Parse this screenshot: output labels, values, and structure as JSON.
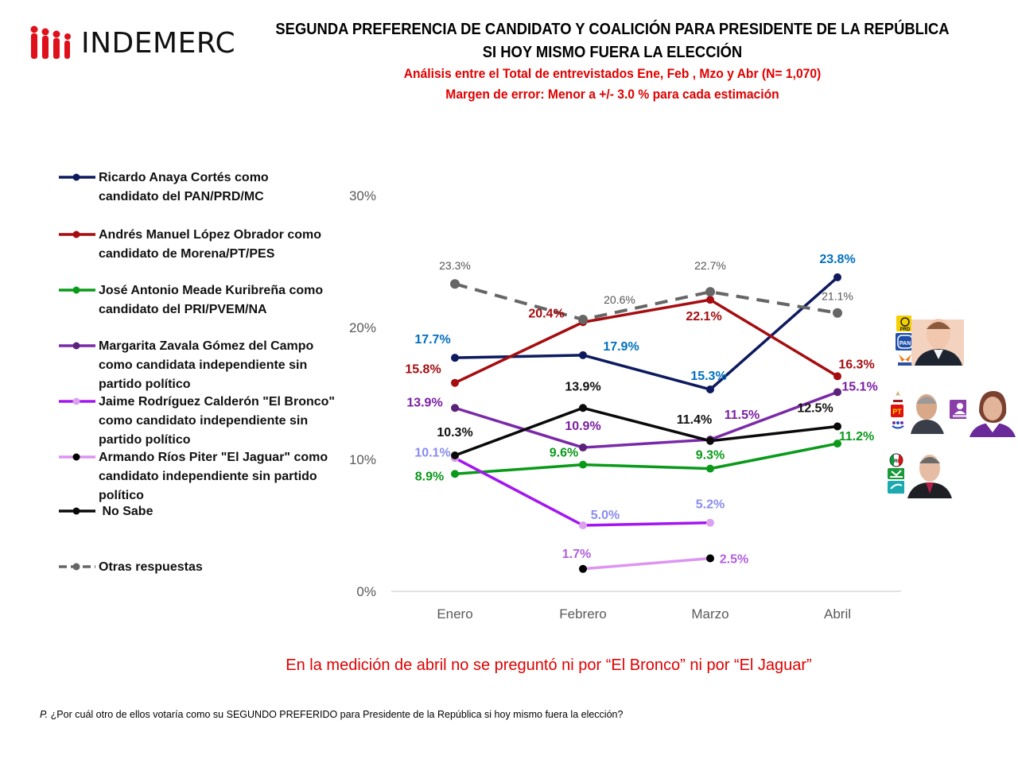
{
  "logo": {
    "text": "INDEMERC",
    "brand_color": "#e0101a"
  },
  "header": {
    "title_line1": "SEGUNDA PREFERENCIA DE CANDIDATO Y COALICIÓN PARA PRESIDENTE DE LA REPÚBLICA",
    "title_line2": "SI HOY MISMO FUERA LA ELECCIÓN",
    "subtitle_line1": "Análisis entre el Total de entrevistados Ene, Feb , Mzo y Abr  (N= 1,070)",
    "subtitle_line2": "Margen de error: Menor a +/- 3.0 % para cada estimación"
  },
  "legend": [
    {
      "lines": [
        "Ricardo Anaya Cortés como",
        "candidato del PAN/PRD/MC"
      ]
    },
    {
      "lines": [
        "Andrés Manuel López Obrador como",
        "candidato de Morena/PT/PES"
      ]
    },
    {
      "lines": [
        "José Antonio Meade Kuribreña como",
        "candidato del PRI/PVEM/NA"
      ]
    },
    {
      "lines": [
        "Margarita Zavala Gómez del Campo",
        "como candidata independiente sin",
        "partido político"
      ]
    },
    {
      "lines": [
        "Jaime Rodríguez Calderón \"El Bronco\"",
        "como candidato independiente sin",
        "partido político"
      ]
    },
    {
      "lines": [
        "Armando Ríos Piter \"El Jaguar\" como",
        "candidato independiente sin partido",
        "político"
      ]
    },
    {
      "lines": [
        " No Sabe"
      ]
    },
    {
      "lines": [
        "Otras respuestas"
      ]
    }
  ],
  "chart_data": {
    "type": "line",
    "title": "SEGUNDA PREFERENCIA DE CANDIDATO Y COALICIÓN PARA PRESIDENTE DE LA REPÚBLICA",
    "xlabel": "",
    "ylabel": "",
    "categories": [
      "Enero",
      "Febrero",
      "Marzo",
      "Abril"
    ],
    "ylim": [
      0,
      30
    ],
    "yticks": [
      "0%",
      "10%",
      "20%",
      "30%"
    ],
    "ytick_values": [
      0,
      10,
      20,
      30
    ],
    "grid": false,
    "legend_position": "left",
    "series": [
      {
        "name": "Ricardo Anaya Cortés como candidato del PAN/PRD/MC",
        "values": [
          17.7,
          17.9,
          15.3,
          23.8
        ],
        "labels": [
          "17.7%",
          "17.9%",
          "15.3%",
          "23.8%"
        ],
        "color": "#0d1a5e",
        "label_color": "#0070c0",
        "marker_color": "#0d1a5e",
        "dash": false
      },
      {
        "name": "Andrés Manuel López Obrador como candidato de Morena/PT/PES",
        "values": [
          15.8,
          20.4,
          22.1,
          16.3
        ],
        "labels": [
          "15.8%",
          "20.4%",
          "22.1%",
          "16.3%"
        ],
        "color": "#a50d10",
        "label_color": "#a50d10",
        "marker_color": "#a50d10",
        "dash": false
      },
      {
        "name": "José Antonio Meade Kuribreña como candidato del PRI/PVEM/NA",
        "values": [
          8.9,
          9.6,
          9.3,
          11.2
        ],
        "labels": [
          "8.9%",
          "9.6%",
          "9.3%",
          "11.2%"
        ],
        "color": "#0a9a1a",
        "label_color": "#0a9a1a",
        "marker_color": "#0a9a1a",
        "dash": false
      },
      {
        "name": "Margarita Zavala Gómez del Campo como candidata independiente sin partido político",
        "values": [
          13.9,
          10.9,
          11.5,
          15.1
        ],
        "labels": [
          "13.9%",
          "10.9%",
          "11.5%",
          "15.1%"
        ],
        "color": "#7a2aa8",
        "label_color": "#7a1fa2",
        "marker_color": "#5a2378",
        "dash": false
      },
      {
        "name": "Jaime Rodríguez Calderón \"El Bronco\" como candidato independiente sin partido político",
        "values": [
          10.1,
          5.0,
          5.2,
          null
        ],
        "labels": [
          "10.1%",
          "5.0%",
          "5.2%",
          null
        ],
        "color": "#a316f0",
        "label_color": "#8a8cf0",
        "marker_color": "#dca0f0",
        "dash": false
      },
      {
        "name": "Armando Ríos Piter \"El Jaguar\" como candidato independiente sin partido político",
        "values": [
          null,
          1.7,
          2.5,
          null
        ],
        "labels": [
          null,
          "1.7%",
          "2.5%",
          null
        ],
        "color": "#dd95f2",
        "label_color": "#b060e0",
        "marker_color": "#000000",
        "dash": false
      },
      {
        "name": "No Sabe",
        "values": [
          10.3,
          13.9,
          11.4,
          12.5
        ],
        "labels": [
          "10.3%",
          "13.9%",
          "11.4%",
          "12.5%"
        ],
        "color": "#0a0a0a",
        "label_color": "#111111",
        "marker_color": "#0a0a0a",
        "dash": false
      },
      {
        "name": "Otras respuestas",
        "values": [
          23.3,
          20.6,
          22.7,
          21.1
        ],
        "labels": [
          "23.3%",
          "20.6%",
          "22.7%",
          "21.1%"
        ],
        "color": "#666666",
        "label_color": "#555555",
        "marker_color": "#666666",
        "dash": true
      }
    ]
  },
  "footnote": {
    "note": "En la medición de abril no se preguntó ni por “El Bronco” ni por “El Jaguar”",
    "question_prefix": "P.",
    "question": " ¿Por cuál otro de ellos votaría como su SEGUNDO PREFERIDO para Presidente de la República si hoy mismo fuera la elección?"
  },
  "candidate_photos": [
    {
      "name": "Ricardo Anaya",
      "parties": [
        "PRD",
        "PAN",
        "MC"
      ]
    },
    {
      "name": "Andrés Manuel López Obrador",
      "parties": [
        "Morena",
        "PT",
        "PES"
      ]
    },
    {
      "name": "Margarita Zavala",
      "parties": [
        "Independiente"
      ]
    },
    {
      "name": "José Antonio Meade",
      "parties": [
        "PRI",
        "VERDE",
        "Nueva Alianza"
      ]
    }
  ]
}
